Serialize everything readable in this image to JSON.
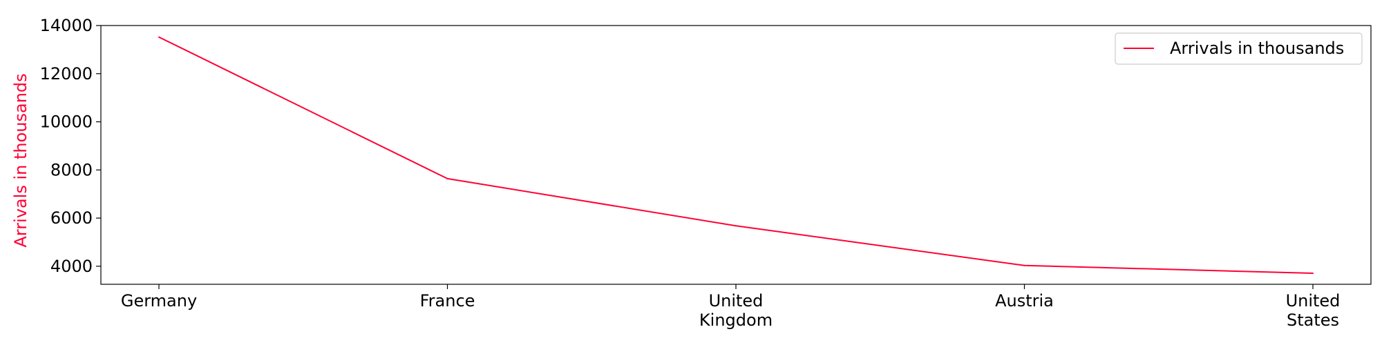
{
  "chart_data": {
    "type": "line",
    "categories": [
      [
        "Germany"
      ],
      [
        "France"
      ],
      [
        "United",
        "Kingdom"
      ],
      [
        "Austria"
      ],
      [
        "United",
        "States"
      ]
    ],
    "series": [
      {
        "name": "Arrivals in thousands",
        "values": [
          13520,
          7640,
          5680,
          4030,
          3710
        ],
        "color": "#ff0033"
      }
    ],
    "xlabel": "",
    "ylabel": "Arrivals in thousands",
    "ylim": [
      3250,
      14000
    ],
    "yticks": [
      4000,
      6000,
      8000,
      10000,
      12000,
      14000
    ],
    "grid": false,
    "legend_position": "top-right"
  }
}
